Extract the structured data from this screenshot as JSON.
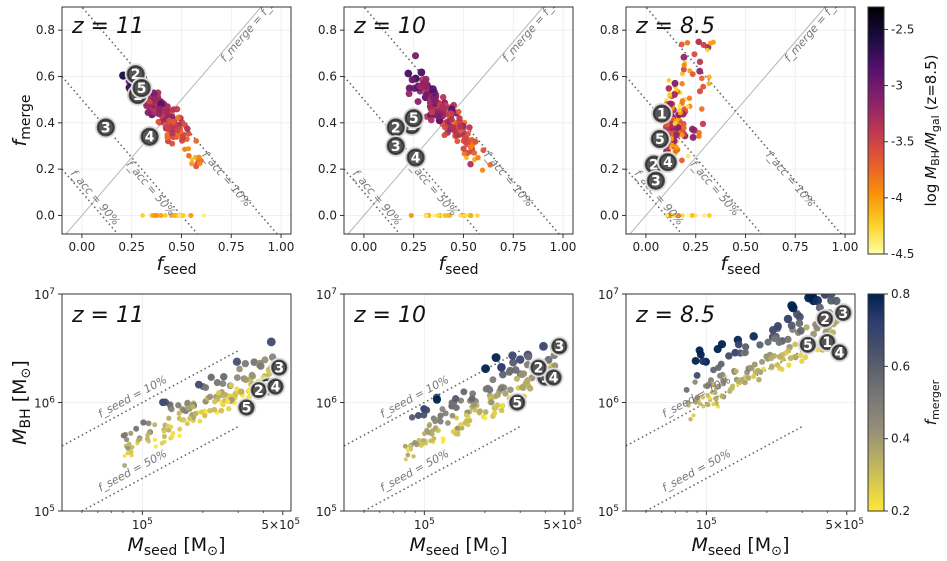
{
  "chart_data": {
    "type": "scatter",
    "panels_top": [
      {
        "redshift_label": "z = 11",
        "xlabel": "f_seed",
        "ylabel": "f_merge",
        "xlim": [
          -0.1,
          1.05
        ],
        "ylim": [
          -0.08,
          0.9
        ],
        "xticks": [
          "0.00",
          "0.25",
          "0.50",
          "0.75",
          "1.00"
        ],
        "yticks": [
          "0.0",
          "0.2",
          "0.4",
          "0.6",
          "0.8"
        ],
        "lines": {
          "one_to_one": "f_merge = f_seed",
          "acc90": "f_acc = 90%",
          "acc50": "f_acc = 50%",
          "acc10": "f_acc = 10%"
        },
        "highlighted": [
          {
            "label": "1",
            "x": 0.28,
            "y": 0.52
          },
          {
            "label": "2",
            "x": 0.27,
            "y": 0.61
          },
          {
            "label": "3",
            "x": 0.12,
            "y": 0.38
          },
          {
            "label": "4",
            "x": 0.34,
            "y": 0.34
          },
          {
            "label": "5",
            "x": 0.3,
            "y": 0.55
          }
        ]
      },
      {
        "redshift_label": "z = 10",
        "xlabel": "f_seed",
        "ylabel": "",
        "xlim": [
          -0.1,
          1.05
        ],
        "ylim": [
          -0.08,
          0.9
        ],
        "xticks": [
          "0.00",
          "0.25",
          "0.50",
          "0.75",
          "1.00"
        ],
        "yticks": [
          "0.0",
          "0.2",
          "0.4",
          "0.6",
          "0.8"
        ],
        "lines": {
          "one_to_one": "f_merge = f_seed",
          "acc90": "f_acc = 90%",
          "acc50": "f_acc = 50%",
          "acc10": "f_acc = 10%"
        },
        "highlighted": [
          {
            "label": "1",
            "x": 0.24,
            "y": 0.39
          },
          {
            "label": "2",
            "x": 0.16,
            "y": 0.38
          },
          {
            "label": "3",
            "x": 0.16,
            "y": 0.3
          },
          {
            "label": "4",
            "x": 0.26,
            "y": 0.25
          },
          {
            "label": "5",
            "x": 0.25,
            "y": 0.42
          }
        ]
      },
      {
        "redshift_label": "z = 8.5",
        "xlabel": "f_seed",
        "ylabel": "",
        "xlim": [
          -0.1,
          1.05
        ],
        "ylim": [
          -0.08,
          0.9
        ],
        "xticks": [
          "0.00",
          "0.25",
          "0.50",
          "0.75",
          "1.00"
        ],
        "yticks": [
          "0.0",
          "0.2",
          "0.4",
          "0.6",
          "0.8"
        ],
        "lines": {
          "one_to_one": "f_merge = f_seed",
          "acc90": "f_acc = 90%",
          "acc50": "f_acc = 50%",
          "acc10": "f_acc = 10%"
        },
        "highlighted": [
          {
            "label": "1",
            "x": 0.08,
            "y": 0.44
          },
          {
            "label": "2",
            "x": 0.04,
            "y": 0.22
          },
          {
            "label": "3",
            "x": 0.05,
            "y": 0.15
          },
          {
            "label": "4",
            "x": 0.11,
            "y": 0.23
          },
          {
            "label": "5",
            "x": 0.07,
            "y": 0.33
          }
        ]
      }
    ],
    "panels_bottom": [
      {
        "redshift_label": "z = 11",
        "xlabel": "M_seed [M_sun]",
        "ylabel": "M_BH [M_sun]",
        "xlim_log": [
          4.6,
          5.74
        ],
        "ylim_log": [
          5,
          7
        ],
        "xticks": [
          "10^5",
          "5×10^5"
        ],
        "yticks": [
          "10^5",
          "10^6",
          "10^7"
        ],
        "lines": {
          "seed10": "f_seed = 10%",
          "seed50": "f_seed = 50%"
        },
        "highlighted": [
          {
            "label": "1",
            "m_seed": 420000,
            "m_bh": 1400000
          },
          {
            "label": "2",
            "m_seed": 380000,
            "m_bh": 1300000
          },
          {
            "label": "3",
            "m_seed": 480000,
            "m_bh": 2100000
          },
          {
            "label": "4",
            "m_seed": 460000,
            "m_bh": 1400000
          },
          {
            "label": "5",
            "m_seed": 330000,
            "m_bh": 900000
          }
        ]
      },
      {
        "redshift_label": "z = 10",
        "xlabel": "M_seed [M_sun]",
        "ylabel": "",
        "xlim_log": [
          4.6,
          5.74
        ],
        "ylim_log": [
          5,
          7
        ],
        "xticks": [
          "10^5",
          "5×10^5"
        ],
        "yticks": [
          "10^5",
          "10^6",
          "10^7"
        ],
        "lines": {
          "seed10": "f_seed = 10%",
          "seed50": "f_seed = 50%"
        },
        "highlighted": [
          {
            "label": "1",
            "m_seed": 400000,
            "m_bh": 1700000
          },
          {
            "label": "2",
            "m_seed": 370000,
            "m_bh": 2100000
          },
          {
            "label": "3",
            "m_seed": 470000,
            "m_bh": 3300000
          },
          {
            "label": "4",
            "m_seed": 440000,
            "m_bh": 1700000
          },
          {
            "label": "5",
            "m_seed": 290000,
            "m_bh": 1000000
          }
        ]
      },
      {
        "redshift_label": "z = 8.5",
        "xlabel": "M_seed [M_sun]",
        "ylabel": "",
        "xlim_log": [
          4.6,
          5.74
        ],
        "ylim_log": [
          5,
          7
        ],
        "xticks": [
          "10^5",
          "5×10^5"
        ],
        "yticks": [
          "10^5",
          "10^6",
          "10^7"
        ],
        "lines": {
          "seed10": "f_seed = 10%",
          "seed50": "f_seed = 50%"
        },
        "highlighted": [
          {
            "label": "1",
            "m_seed": 400000,
            "m_bh": 3600000
          },
          {
            "label": "2",
            "m_seed": 390000,
            "m_bh": 5900000
          },
          {
            "label": "3",
            "m_seed": 480000,
            "m_bh": 6700000
          },
          {
            "label": "4",
            "m_seed": 460000,
            "m_bh": 2900000
          },
          {
            "label": "5",
            "m_seed": 320000,
            "m_bh": 3400000
          }
        ]
      }
    ],
    "colorbar_top": {
      "label": "log M_BH/M_gal (z=8.5)",
      "range": [
        -4.5,
        -2.3
      ],
      "ticks": [
        "-2.5",
        "-3",
        "-3.5",
        "-4",
        "-4.5"
      ]
    },
    "colorbar_bottom": {
      "label": "f_merger",
      "range": [
        0.2,
        0.8
      ],
      "ticks": [
        "0.8",
        "0.6",
        "0.4",
        "0.2"
      ]
    }
  }
}
